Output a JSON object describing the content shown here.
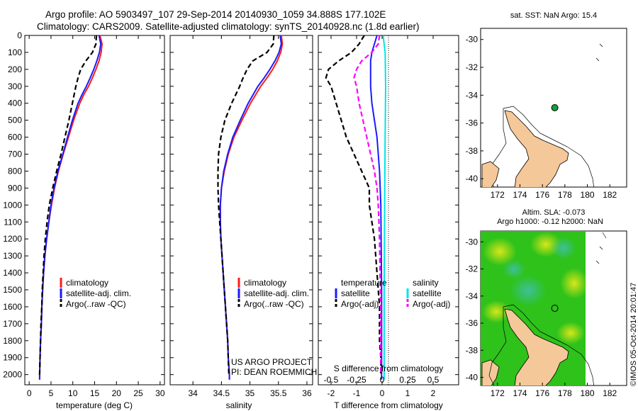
{
  "header": {
    "title_line1": "Argo profile: AO 5903497_107 29-Sep-2014 20140930_1059 34.888S 177.102E",
    "title_line2": "Climatology: CARS2009. Satellite-adjusted climatology: synTS_20140928.nc (1.8d earlier)"
  },
  "colors": {
    "climatology": "#ff1a1a",
    "satellite": "#1a1aff",
    "argo": "#000000",
    "salinity_satellite": "#00e5e5",
    "salinity_argo": "#ff00ff",
    "land": "#f5c89a",
    "ocean_map_green": "#2ec21a"
  },
  "chart_data": [
    {
      "type": "line",
      "id": "temperature",
      "xlabel": "temperature (deg C)",
      "ylabel": "",
      "xlim": [
        -1,
        31
      ],
      "ylim": [
        2060,
        0
      ],
      "xticks": [
        0,
        5,
        10,
        15,
        20,
        25,
        30
      ],
      "yticks": [
        0,
        100,
        200,
        300,
        400,
        500,
        600,
        700,
        800,
        900,
        1000,
        1100,
        1200,
        1300,
        1400,
        1500,
        1600,
        1700,
        1800,
        1900,
        2000
      ],
      "legend": [
        "climatology",
        "satellite-adj. clim.",
        "Argo(..raw -QC)"
      ],
      "series": [
        {
          "name": "climatology",
          "style": "solid",
          "color": "climatology",
          "depth": [
            0,
            50,
            100,
            150,
            200,
            250,
            300,
            350,
            400,
            500,
            600,
            700,
            800,
            900,
            1000,
            1100,
            1200,
            1300,
            1400,
            1500,
            1600,
            1700,
            1800,
            1900,
            2000,
            2030
          ],
          "values": [
            16.2,
            16.7,
            16.5,
            16.0,
            15.3,
            14.5,
            13.6,
            12.5,
            11.6,
            10.2,
            9.0,
            7.8,
            6.7,
            5.8,
            5.1,
            4.5,
            4.0,
            3.6,
            3.3,
            3.1,
            2.9,
            2.8,
            2.6,
            2.5,
            2.4,
            2.4
          ]
        },
        {
          "name": "satellite-adj. clim.",
          "style": "solid",
          "color": "satellite",
          "depth": [
            0,
            50,
            100,
            150,
            200,
            250,
            300,
            350,
            400,
            500,
            600,
            700,
            800,
            900,
            1000,
            1100,
            1200,
            1300,
            1400,
            1500,
            1600,
            1700,
            1800,
            1900,
            2000,
            2030
          ],
          "values": [
            16.0,
            16.4,
            16.1,
            15.5,
            14.8,
            14.0,
            13.1,
            12.1,
            11.2,
            9.9,
            8.8,
            7.7,
            6.6,
            5.7,
            5.0,
            4.5,
            4.0,
            3.6,
            3.3,
            3.1,
            2.9,
            2.8,
            2.6,
            2.5,
            2.4,
            2.4
          ]
        },
        {
          "name": "Argo(..raw -QC)",
          "style": "dashed",
          "color": "argo",
          "depth": [
            0,
            50,
            100,
            150,
            200,
            250,
            300,
            400,
            500,
            600,
            700,
            800,
            900,
            1000,
            1100,
            1200,
            1300,
            1400,
            1500,
            1600,
            1700,
            1800,
            1900,
            2000
          ],
          "values": [
            15.4,
            15.3,
            14.5,
            13.0,
            11.8,
            11.2,
            10.7,
            9.9,
            9.1,
            8.2,
            7.3,
            6.3,
            5.4,
            4.6,
            4.1,
            3.7,
            3.4,
            3.2,
            3.0,
            2.9,
            2.7,
            2.6,
            2.5,
            2.4
          ]
        }
      ]
    },
    {
      "type": "line",
      "id": "salinity",
      "xlabel": "salinity",
      "ylabel": "",
      "xlim": [
        33.6,
        36.1
      ],
      "ylim": [
        2060,
        0
      ],
      "xticks": [
        34,
        34.5,
        35,
        35.5,
        36
      ],
      "xticklabels": [
        "34",
        "34.5",
        "35",
        "35.5",
        "36"
      ],
      "legend": [
        "climatology",
        "satellite-adj. clim.",
        "Argo(..raw -QC)"
      ],
      "series": [
        {
          "name": "climatology",
          "style": "solid",
          "color": "climatology",
          "depth": [
            0,
            50,
            100,
            150,
            200,
            250,
            300,
            400,
            500,
            600,
            700,
            800,
            900,
            1000,
            1100,
            1200,
            1300,
            1400,
            1500,
            1600,
            1700,
            1800,
            1900,
            2000,
            2030
          ],
          "values": [
            35.55,
            35.57,
            35.54,
            35.48,
            35.4,
            35.3,
            35.19,
            35.01,
            34.86,
            34.72,
            34.62,
            34.55,
            34.5,
            34.48,
            34.48,
            34.49,
            34.51,
            34.53,
            34.55,
            34.57,
            34.59,
            34.61,
            34.62,
            34.64,
            34.64
          ]
        },
        {
          "name": "satellite-adj. clim.",
          "style": "solid",
          "color": "satellite",
          "depth": [
            0,
            50,
            100,
            150,
            200,
            250,
            300,
            400,
            500,
            600,
            700,
            800,
            900,
            1000,
            1100,
            1200,
            1300,
            1400,
            1500,
            1600,
            1700,
            1800,
            1900,
            2000,
            2030
          ],
          "values": [
            35.53,
            35.55,
            35.51,
            35.44,
            35.35,
            35.25,
            35.14,
            34.97,
            34.83,
            34.7,
            34.61,
            34.54,
            34.5,
            34.48,
            34.48,
            34.49,
            34.51,
            34.53,
            34.55,
            34.57,
            34.59,
            34.61,
            34.62,
            34.64,
            34.64
          ]
        },
        {
          "name": "Argo(..raw -QC)",
          "style": "dashed",
          "color": "argo",
          "depth": [
            0,
            50,
            100,
            150,
            200,
            250,
            300,
            400,
            500,
            600,
            700,
            800,
            900,
            1000,
            1100,
            1200,
            1300,
            1400,
            1500,
            1600,
            1700,
            1800,
            1900,
            2000
          ],
          "values": [
            35.42,
            35.41,
            35.3,
            35.05,
            34.95,
            34.88,
            34.82,
            34.68,
            34.56,
            34.49,
            34.45,
            34.44,
            34.44,
            34.45,
            34.47,
            34.49,
            34.51,
            34.53,
            34.55,
            34.57,
            34.59,
            34.61,
            34.62,
            34.63
          ]
        }
      ]
    },
    {
      "type": "line",
      "id": "difference",
      "xlabel": "T difference from climatology",
      "xlabel_top": "S difference from climatology",
      "xlim": [
        -2.5,
        3.0
      ],
      "ylim": [
        2060,
        0
      ],
      "xticks": [
        -2,
        -1,
        0,
        1,
        2
      ],
      "xticklabels": [
        "-2",
        "-1",
        "0",
        "1",
        "2"
      ],
      "s_ticklabels": [
        "-0.5",
        "-0.25",
        "0",
        "0.25",
        "0.5"
      ],
      "legend_groups": [
        "temperature",
        "salinity"
      ],
      "legend": [
        "satellite",
        "Argo(-adj)",
        "satellite",
        "Argo(-adj)"
      ],
      "series": [
        {
          "name": "satellite",
          "group": "temperature",
          "style": "solid",
          "color": "satellite",
          "depth": [
            0,
            50,
            100,
            150,
            200,
            300,
            400,
            500,
            600,
            800,
            1000,
            1500,
            2030
          ],
          "values": [
            -0.2,
            -0.3,
            -0.4,
            -0.45,
            -0.45,
            -0.45,
            -0.4,
            -0.3,
            -0.2,
            -0.1,
            -0.05,
            -0.02,
            -0.02
          ]
        },
        {
          "name": "Argo(-adj)",
          "group": "temperature",
          "style": "dashed",
          "color": "argo",
          "depth": [
            0,
            50,
            100,
            150,
            200,
            250,
            300,
            400,
            500,
            600,
            700,
            800,
            900,
            1000,
            1100,
            1200,
            1300,
            1400,
            1500,
            1600,
            1700,
            1800,
            1900,
            2000
          ],
          "values": [
            -0.7,
            -0.9,
            -1.2,
            -1.7,
            -2.1,
            -2.2,
            -2.0,
            -1.8,
            -1.6,
            -1.4,
            -1.1,
            -0.8,
            -0.5,
            -0.5,
            -0.4,
            -0.3,
            -0.25,
            -0.2,
            -0.15,
            -0.1,
            -0.1,
            -0.1,
            -0.05,
            -0.05
          ]
        },
        {
          "name": "satellite",
          "group": "salinity",
          "style": "solid",
          "color": "salinity_satellite",
          "depth": [
            0,
            100,
            300,
            600,
            1000,
            1500,
            2030
          ],
          "values": [
            0.04,
            0.12,
            0.14,
            0.12,
            0.1,
            0.08,
            0.08
          ]
        },
        {
          "name": "Argo(-adj)",
          "group": "salinity",
          "style": "dashed",
          "color": "salinity_argo",
          "depth": [
            0,
            50,
            100,
            150,
            200,
            250,
            300,
            400,
            500,
            600,
            700,
            800,
            900,
            1000,
            1200,
            1400,
            1600,
            1800,
            2000
          ],
          "values": [
            -0.1,
            -0.15,
            -0.4,
            -0.8,
            -1.0,
            -1.1,
            -1.0,
            -0.9,
            -0.75,
            -0.6,
            -0.45,
            -0.3,
            -0.2,
            -0.15,
            -0.1,
            -0.08,
            -0.05,
            -0.05,
            -0.05
          ]
        }
      ]
    },
    {
      "type": "scatter",
      "id": "sst_map",
      "title": "sat. SST: NaN Argo: 15.4",
      "xlim": [
        170.5,
        183.5
      ],
      "ylim": [
        -40.6,
        -29.2
      ],
      "xticks": [
        172,
        174,
        176,
        178,
        180,
        182
      ],
      "yticks": [
        -30,
        -32,
        -34,
        -36,
        -38,
        -40
      ],
      "argo_position": {
        "lon": 177.1,
        "lat": -34.9
      }
    },
    {
      "type": "heatmap",
      "id": "sla_map",
      "title_line1": "Altim. SLA: -0.073",
      "title_line2": "Argo h1000: -0.12 h2000: NaN",
      "xlim": [
        170.5,
        183.5
      ],
      "ylim": [
        -40.6,
        -29.2
      ],
      "xticks": [
        172,
        174,
        176,
        178,
        180,
        182
      ],
      "yticks": [
        -30,
        -32,
        -34,
        -36,
        -38,
        -40
      ],
      "data_extent_lon": [
        170.5,
        180.0
      ],
      "argo_position": {
        "lon": 177.1,
        "lat": -34.9
      }
    }
  ],
  "annotations": {
    "project_line1": "US ARGO PROJECT",
    "project_line2": "PI: DEAN ROEMMICH",
    "watermark": "©IMOS 05-Oct-2014 20:01:47"
  }
}
